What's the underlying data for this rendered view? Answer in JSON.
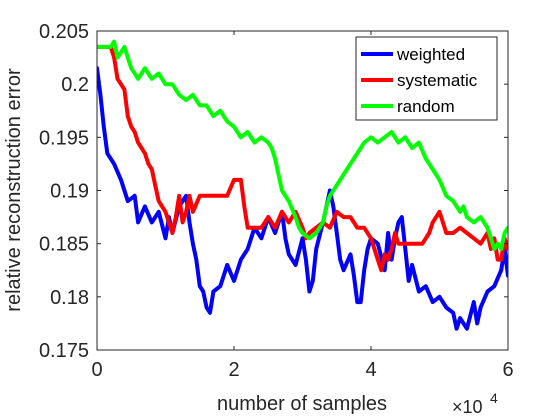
{
  "chart_data": {
    "type": "line",
    "xlabel": "number of samples",
    "ylabel": "relative reconstruction error",
    "x_exponent_label": "×10",
    "x_exponent_power": "4",
    "xlim": [
      0,
      6
    ],
    "ylim": [
      0.175,
      0.205
    ],
    "x_ticks": [
      0,
      2,
      4,
      6
    ],
    "x_tick_labels": [
      "0",
      "2",
      "4",
      "6"
    ],
    "y_ticks": [
      0.175,
      0.18,
      0.185,
      0.19,
      0.195,
      0.2,
      0.205
    ],
    "y_tick_labels": [
      "0.175",
      "0.18",
      "0.185",
      "0.19",
      "0.195",
      "0.2",
      "0.205"
    ],
    "grid": false,
    "legend_position": "top-right",
    "series": [
      {
        "name": "weighted",
        "color": "#0000ff",
        "points": [
          [
            0,
            0.2015
          ],
          [
            0.05,
            0.199
          ],
          [
            0.1,
            0.196
          ],
          [
            0.15,
            0.1935
          ],
          [
            0.25,
            0.1925
          ],
          [
            0.35,
            0.191
          ],
          [
            0.45,
            0.189
          ],
          [
            0.55,
            0.1895
          ],
          [
            0.6,
            0.187
          ],
          [
            0.7,
            0.1885
          ],
          [
            0.8,
            0.187
          ],
          [
            0.9,
            0.188
          ],
          [
            1.0,
            0.1855
          ],
          [
            1.05,
            0.1875
          ],
          [
            1.1,
            0.186
          ],
          [
            1.2,
            0.1885
          ],
          [
            1.3,
            0.1895
          ],
          [
            1.35,
            0.187
          ],
          [
            1.4,
            0.185
          ],
          [
            1.45,
            0.1835
          ],
          [
            1.5,
            0.181
          ],
          [
            1.55,
            0.1805
          ],
          [
            1.6,
            0.179
          ],
          [
            1.65,
            0.1785
          ],
          [
            1.7,
            0.1805
          ],
          [
            1.8,
            0.181
          ],
          [
            1.9,
            0.183
          ],
          [
            2.0,
            0.1815
          ],
          [
            2.1,
            0.1835
          ],
          [
            2.2,
            0.1845
          ],
          [
            2.3,
            0.1865
          ],
          [
            2.4,
            0.1855
          ],
          [
            2.5,
            0.1875
          ],
          [
            2.6,
            0.186
          ],
          [
            2.7,
            0.188
          ],
          [
            2.75,
            0.1855
          ],
          [
            2.8,
            0.184
          ],
          [
            2.9,
            0.183
          ],
          [
            3.0,
            0.1855
          ],
          [
            3.05,
            0.1835
          ],
          [
            3.1,
            0.1805
          ],
          [
            3.15,
            0.1815
          ],
          [
            3.2,
            0.1845
          ],
          [
            3.3,
            0.187
          ],
          [
            3.4,
            0.19
          ],
          [
            3.45,
            0.1885
          ],
          [
            3.5,
            0.186
          ],
          [
            3.55,
            0.1835
          ],
          [
            3.6,
            0.1825
          ],
          [
            3.7,
            0.184
          ],
          [
            3.75,
            0.182
          ],
          [
            3.8,
            0.1795
          ],
          [
            3.85,
            0.1795
          ],
          [
            3.9,
            0.1825
          ],
          [
            3.95,
            0.1845
          ],
          [
            4.0,
            0.1855
          ],
          [
            4.1,
            0.185
          ],
          [
            4.2,
            0.1825
          ],
          [
            4.25,
            0.186
          ],
          [
            4.3,
            0.1835
          ],
          [
            4.35,
            0.1855
          ],
          [
            4.4,
            0.187
          ],
          [
            4.45,
            0.1875
          ],
          [
            4.5,
            0.1845
          ],
          [
            4.55,
            0.1815
          ],
          [
            4.6,
            0.183
          ],
          [
            4.7,
            0.1805
          ],
          [
            4.8,
            0.181
          ],
          [
            4.9,
            0.1795
          ],
          [
            5.0,
            0.18
          ],
          [
            5.1,
            0.179
          ],
          [
            5.2,
            0.1785
          ],
          [
            5.25,
            0.177
          ],
          [
            5.3,
            0.178
          ],
          [
            5.4,
            0.177
          ],
          [
            5.5,
            0.1795
          ],
          [
            5.55,
            0.1775
          ],
          [
            5.6,
            0.179
          ],
          [
            5.7,
            0.1805
          ],
          [
            5.8,
            0.181
          ],
          [
            5.9,
            0.1825
          ],
          [
            5.95,
            0.1845
          ],
          [
            6.0,
            0.182
          ]
        ]
      },
      {
        "name": "systematic",
        "color": "#ff0000",
        "points": [
          [
            0,
            0.2035
          ],
          [
            0.2,
            0.2035
          ],
          [
            0.25,
            0.2025
          ],
          [
            0.3,
            0.2005
          ],
          [
            0.35,
            0.2
          ],
          [
            0.4,
            0.1995
          ],
          [
            0.45,
            0.197
          ],
          [
            0.5,
            0.196
          ],
          [
            0.55,
            0.1955
          ],
          [
            0.6,
            0.1945
          ],
          [
            0.7,
            0.1935
          ],
          [
            0.75,
            0.1925
          ],
          [
            0.8,
            0.192
          ],
          [
            0.85,
            0.1905
          ],
          [
            0.9,
            0.189
          ],
          [
            0.95,
            0.1885
          ],
          [
            1.0,
            0.188
          ],
          [
            1.05,
            0.187
          ],
          [
            1.1,
            0.186
          ],
          [
            1.15,
            0.1875
          ],
          [
            1.2,
            0.1895
          ],
          [
            1.25,
            0.187
          ],
          [
            1.3,
            0.188
          ],
          [
            1.35,
            0.1895
          ],
          [
            1.4,
            0.188
          ],
          [
            1.5,
            0.1895
          ],
          [
            1.6,
            0.1895
          ],
          [
            1.7,
            0.1895
          ],
          [
            1.9,
            0.1895
          ],
          [
            2.0,
            0.191
          ],
          [
            2.1,
            0.191
          ],
          [
            2.15,
            0.1885
          ],
          [
            2.2,
            0.1865
          ],
          [
            2.4,
            0.1865
          ],
          [
            2.5,
            0.1875
          ],
          [
            2.6,
            0.1865
          ],
          [
            2.7,
            0.188
          ],
          [
            2.8,
            0.187
          ],
          [
            2.9,
            0.188
          ],
          [
            3.0,
            0.1865
          ],
          [
            3.05,
            0.1855
          ],
          [
            3.1,
            0.186
          ],
          [
            3.2,
            0.1865
          ],
          [
            3.3,
            0.187
          ],
          [
            3.4,
            0.1865
          ],
          [
            3.5,
            0.188
          ],
          [
            3.6,
            0.1875
          ],
          [
            3.7,
            0.1875
          ],
          [
            3.8,
            0.1865
          ],
          [
            3.9,
            0.1865
          ],
          [
            4.0,
            0.1855
          ],
          [
            4.05,
            0.1845
          ],
          [
            4.1,
            0.1835
          ],
          [
            4.15,
            0.1825
          ],
          [
            4.2,
            0.184
          ],
          [
            4.25,
            0.1835
          ],
          [
            4.3,
            0.1845
          ],
          [
            4.35,
            0.186
          ],
          [
            4.4,
            0.185
          ],
          [
            4.5,
            0.185
          ],
          [
            4.6,
            0.185
          ],
          [
            4.75,
            0.185
          ],
          [
            4.8,
            0.1855
          ],
          [
            4.85,
            0.186
          ],
          [
            4.9,
            0.187
          ],
          [
            5.0,
            0.188
          ],
          [
            5.05,
            0.187
          ],
          [
            5.1,
            0.186
          ],
          [
            5.2,
            0.186
          ],
          [
            5.3,
            0.1865
          ],
          [
            5.4,
            0.186
          ],
          [
            5.5,
            0.1855
          ],
          [
            5.6,
            0.185
          ],
          [
            5.7,
            0.186
          ],
          [
            5.75,
            0.1845
          ],
          [
            5.8,
            0.1855
          ],
          [
            5.85,
            0.1835
          ],
          [
            5.9,
            0.1835
          ],
          [
            5.95,
            0.1855
          ],
          [
            6.0,
            0.1845
          ]
        ]
      },
      {
        "name": "random",
        "color": "#00ff00",
        "points": [
          [
            0,
            0.2035
          ],
          [
            0.1,
            0.2035
          ],
          [
            0.2,
            0.2035
          ],
          [
            0.25,
            0.204
          ],
          [
            0.3,
            0.2025
          ],
          [
            0.35,
            0.203
          ],
          [
            0.4,
            0.2035
          ],
          [
            0.45,
            0.2025
          ],
          [
            0.5,
            0.2015
          ],
          [
            0.6,
            0.2005
          ],
          [
            0.7,
            0.2015
          ],
          [
            0.8,
            0.2005
          ],
          [
            0.9,
            0.201
          ],
          [
            1.0,
            0.2
          ],
          [
            1.1,
            0.2
          ],
          [
            1.2,
            0.199
          ],
          [
            1.3,
            0.1985
          ],
          [
            1.4,
            0.199
          ],
          [
            1.5,
            0.198
          ],
          [
            1.6,
            0.198
          ],
          [
            1.7,
            0.197
          ],
          [
            1.8,
            0.1975
          ],
          [
            1.9,
            0.1965
          ],
          [
            2.0,
            0.196
          ],
          [
            2.1,
            0.195
          ],
          [
            2.2,
            0.1955
          ],
          [
            2.3,
            0.1945
          ],
          [
            2.4,
            0.195
          ],
          [
            2.5,
            0.1945
          ],
          [
            2.55,
            0.194
          ],
          [
            2.6,
            0.193
          ],
          [
            2.65,
            0.1915
          ],
          [
            2.7,
            0.19
          ],
          [
            2.8,
            0.189
          ],
          [
            2.9,
            0.1875
          ],
          [
            2.95,
            0.1865
          ],
          [
            3.0,
            0.186
          ],
          [
            3.1,
            0.1855
          ],
          [
            3.2,
            0.186
          ],
          [
            3.3,
            0.187
          ],
          [
            3.35,
            0.1885
          ],
          [
            3.4,
            0.1895
          ],
          [
            3.5,
            0.1905
          ],
          [
            3.6,
            0.1915
          ],
          [
            3.7,
            0.1925
          ],
          [
            3.8,
            0.1935
          ],
          [
            3.9,
            0.1945
          ],
          [
            4.0,
            0.195
          ],
          [
            4.1,
            0.1945
          ],
          [
            4.2,
            0.195
          ],
          [
            4.3,
            0.1955
          ],
          [
            4.4,
            0.1945
          ],
          [
            4.5,
            0.195
          ],
          [
            4.6,
            0.194
          ],
          [
            4.7,
            0.1945
          ],
          [
            4.8,
            0.193
          ],
          [
            4.9,
            0.192
          ],
          [
            5.0,
            0.191
          ],
          [
            5.1,
            0.1895
          ],
          [
            5.2,
            0.189
          ],
          [
            5.3,
            0.188
          ],
          [
            5.35,
            0.1885
          ],
          [
            5.4,
            0.1875
          ],
          [
            5.5,
            0.187
          ],
          [
            5.6,
            0.1875
          ],
          [
            5.7,
            0.1865
          ],
          [
            5.75,
            0.1855
          ],
          [
            5.8,
            0.1845
          ],
          [
            5.85,
            0.185
          ],
          [
            5.9,
            0.1845
          ],
          [
            5.95,
            0.186
          ],
          [
            6.0,
            0.1865
          ]
        ]
      }
    ]
  }
}
